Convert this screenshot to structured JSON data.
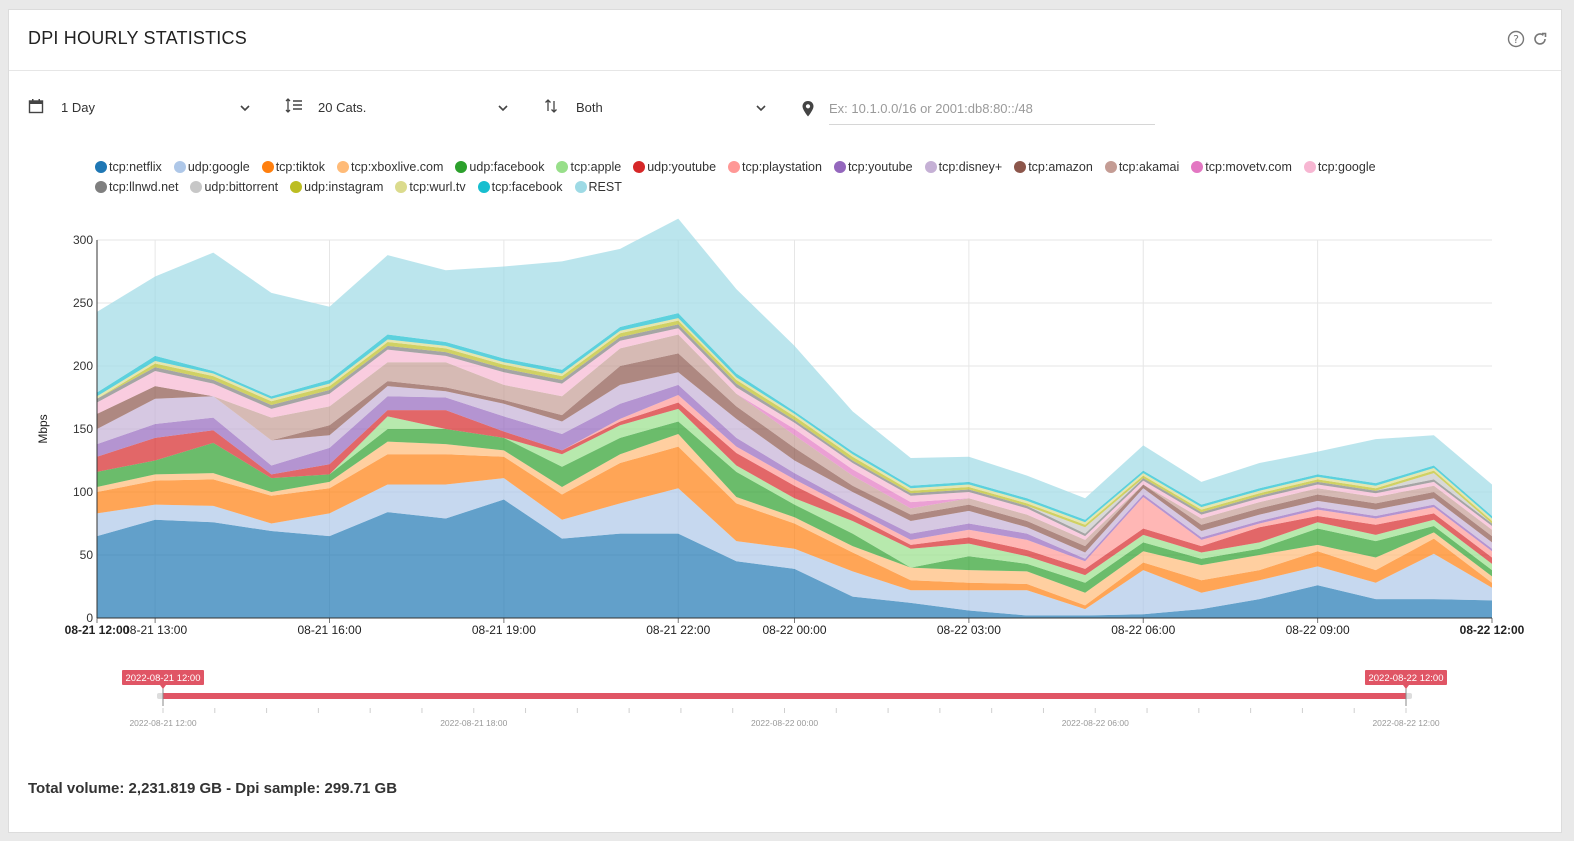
{
  "header": {
    "title": "DPI HOURLY STATISTICS",
    "help_icon": "question-circle-icon",
    "refresh_icon": "refresh-icon"
  },
  "controls": {
    "period": {
      "value": "1 Day",
      "icon": "calendar-icon"
    },
    "categories": {
      "value": "20 Cats.",
      "icon": "list-icon"
    },
    "direction": {
      "value": "Both",
      "icon": "up-down-arrows-icon"
    },
    "ip_filter": {
      "placeholder": "Ex: 10.1.0.0/16 or 2001:db8:80::/48",
      "value": "",
      "icon": "map-marker-icon"
    }
  },
  "chart_data": {
    "type": "area",
    "stacked": true,
    "ylabel": "Mbps",
    "ylim": [
      0,
      300
    ],
    "yticks": [
      0,
      50,
      100,
      150,
      200,
      250,
      300
    ],
    "x_start": "08-21 12:00",
    "x_end": "08-22 12:00",
    "x_tick_labels": [
      "08-21 12:00",
      "08-21 13:00",
      "08-21 16:00",
      "08-21 19:00",
      "08-21 22:00",
      "08-22 00:00",
      "08-22 03:00",
      "08-22 06:00",
      "08-22 09:00",
      "08-22 12:00"
    ],
    "x": [
      "08-21 12:00",
      "08-21 13:00",
      "08-21 14:00",
      "08-21 15:00",
      "08-21 16:00",
      "08-21 17:00",
      "08-21 18:00",
      "08-21 19:00",
      "08-21 20:00",
      "08-21 21:00",
      "08-21 22:00",
      "08-21 23:00",
      "08-22 00:00",
      "08-22 01:00",
      "08-22 02:00",
      "08-22 03:00",
      "08-22 04:00",
      "08-22 05:00",
      "08-22 06:00",
      "08-22 07:00",
      "08-22 08:00",
      "08-22 09:00",
      "08-22 10:00",
      "08-22 11:00",
      "08-22 12:00"
    ],
    "grid": true,
    "legend_position": "top",
    "series": [
      {
        "name": "tcp:netflix",
        "color": "#1f77b4",
        "values": [
          65,
          78,
          76,
          69,
          65,
          84,
          79,
          94,
          63,
          67,
          67,
          45,
          39,
          17,
          12,
          6,
          2,
          2,
          3,
          7,
          15,
          26,
          15,
          15,
          14
        ]
      },
      {
        "name": "udp:google",
        "color": "#aec7e8",
        "values": [
          18,
          12,
          13,
          6,
          18,
          22,
          27,
          17,
          15,
          24,
          36,
          16,
          16,
          20,
          10,
          16,
          20,
          5,
          35,
          13,
          15,
          15,
          13,
          36,
          10
        ]
      },
      {
        "name": "tcp:tiktok",
        "color": "#ff7f0e",
        "values": [
          17,
          19,
          21,
          22,
          20,
          24,
          24,
          17,
          20,
          32,
          33,
          30,
          20,
          15,
          8,
          6,
          5,
          3,
          6,
          10,
          8,
          12,
          10,
          12,
          4
        ]
      },
      {
        "name": "tcp:xboxlive.com",
        "color": "#ffbb78",
        "values": [
          4,
          5,
          5,
          3,
          5,
          10,
          8,
          5,
          6,
          7,
          10,
          5,
          5,
          5,
          10,
          10,
          10,
          10,
          9,
          12,
          12,
          5,
          10,
          5,
          5
        ]
      },
      {
        "name": "udp:facebook",
        "color": "#2ca02c",
        "values": [
          12,
          11,
          24,
          11,
          6,
          10,
          12,
          10,
          16,
          13,
          10,
          20,
          10,
          10,
          0,
          11,
          6,
          8,
          7,
          5,
          5,
          13,
          13,
          5,
          5
        ]
      },
      {
        "name": "tcp:apple",
        "color": "#98df8a",
        "values": [
          0,
          0,
          0,
          0,
          0,
          10,
          0,
          0,
          10,
          10,
          10,
          5,
          5,
          10,
          15,
          10,
          6,
          6,
          6,
          5,
          5,
          5,
          5,
          5,
          5
        ]
      },
      {
        "name": "udp:youtube",
        "color": "#d62728",
        "values": [
          12,
          18,
          10,
          3,
          8,
          5,
          15,
          5,
          3,
          3,
          5,
          10,
          10,
          5,
          3,
          5,
          5,
          5,
          5,
          5,
          12,
          5,
          8,
          5,
          5
        ]
      },
      {
        "name": "tcp:playstation",
        "color": "#ff9896",
        "values": [
          0,
          0,
          0,
          0,
          0,
          0,
          0,
          0,
          0,
          2,
          6,
          5,
          5,
          4,
          4,
          6,
          8,
          6,
          25,
          5,
          3,
          5,
          5,
          5,
          5
        ]
      },
      {
        "name": "tcp:youtube",
        "color": "#9467bd",
        "values": [
          10,
          11,
          10,
          7,
          13,
          11,
          10,
          12,
          13,
          12,
          8,
          7,
          5,
          4,
          5,
          5,
          5,
          2,
          2,
          2,
          2,
          2,
          2,
          2,
          2
        ]
      },
      {
        "name": "tcp:disney+",
        "color": "#c5b0d5",
        "values": [
          12,
          20,
          17,
          20,
          10,
          8,
          5,
          10,
          10,
          15,
          10,
          15,
          10,
          10,
          10,
          10,
          5,
          5,
          5,
          5,
          5,
          5,
          5,
          5,
          5
        ]
      },
      {
        "name": "tcp:amazon",
        "color": "#8c564b",
        "values": [
          12,
          10,
          0,
          0,
          8,
          4,
          3,
          3,
          5,
          15,
          15,
          10,
          10,
          5,
          5,
          5,
          5,
          5,
          3,
          5,
          5,
          5,
          5,
          5,
          5
        ]
      },
      {
        "name": "tcp:akamai",
        "color": "#c49c94",
        "values": [
          0,
          0,
          0,
          18,
          15,
          15,
          20,
          12,
          15,
          14,
          15,
          10,
          10,
          8,
          5,
          5,
          5,
          5,
          0,
          5,
          5,
          5,
          5,
          5,
          5
        ]
      },
      {
        "name": "tcp:movetv.com",
        "color": "#e377c2",
        "values": [
          0,
          0,
          0,
          0,
          0,
          0,
          0,
          0,
          0,
          0,
          0,
          0,
          5,
          5,
          5,
          0,
          0,
          0,
          0,
          0,
          0,
          0,
          0,
          0,
          0
        ]
      },
      {
        "name": "tcp:google",
        "color": "#f7b6d2",
        "values": [
          9,
          12,
          10,
          7,
          10,
          10,
          5,
          10,
          10,
          6,
          5,
          5,
          5,
          5,
          5,
          5,
          5,
          3,
          3,
          3,
          3,
          3,
          3,
          3,
          3
        ]
      },
      {
        "name": "tcp:llnwd.net",
        "color": "#7f7f7f",
        "values": [
          3,
          3,
          3,
          3,
          3,
          3,
          3,
          3,
          3,
          3,
          3,
          3,
          2,
          2,
          2,
          2,
          2,
          2,
          2,
          2,
          2,
          2,
          2,
          2,
          2
        ]
      },
      {
        "name": "udp:bittorrent",
        "color": "#c7c7c7",
        "values": [
          0,
          0,
          0,
          0,
          0,
          0,
          0,
          0,
          0,
          0,
          0,
          0,
          0,
          0,
          0,
          0,
          0,
          5,
          0,
          0,
          0,
          0,
          0,
          5,
          0
        ]
      },
      {
        "name": "udp:instagram",
        "color": "#bcbd22",
        "values": [
          0,
          3,
          3,
          3,
          3,
          3,
          3,
          3,
          3,
          3,
          3,
          3,
          3,
          3,
          2,
          2,
          2,
          2,
          2,
          2,
          2,
          2,
          2,
          2,
          2
        ]
      },
      {
        "name": "tcp:wurl.tv",
        "color": "#dbdb8d",
        "values": [
          2,
          2,
          2,
          2,
          2,
          2,
          2,
          2,
          2,
          2,
          2,
          2,
          2,
          2,
          2,
          2,
          2,
          2,
          2,
          2,
          2,
          2,
          2,
          2,
          2
        ]
      },
      {
        "name": "tcp:facebook",
        "color": "#17becf",
        "values": [
          3,
          4,
          2,
          2,
          3,
          4,
          3,
          3,
          3,
          3,
          4,
          3,
          2,
          2,
          2,
          2,
          2,
          2,
          2,
          2,
          2,
          2,
          2,
          2,
          2
        ]
      },
      {
        "name": "REST",
        "color": "#9edae5",
        "values": [
          64,
          63,
          94,
          82,
          58,
          63,
          57,
          73,
          86,
          62,
          75,
          67,
          52,
          32,
          22,
          20,
          18,
          17,
          20,
          18,
          20,
          18,
          35,
          24,
          25
        ]
      }
    ]
  },
  "navigator": {
    "start_label": "2022-08-21 12:00",
    "end_label": "2022-08-22 12:00",
    "tick_labels": [
      "2022-08-21 12:00",
      "2022-08-21 18:00",
      "2022-08-22 00:00",
      "2022-08-22 06:00",
      "2022-08-22 12:00"
    ],
    "range": [
      0,
      1
    ]
  },
  "footer": {
    "summary": "Total volume: 2,231.819 GB - Dpi sample: 299.71 GB"
  }
}
